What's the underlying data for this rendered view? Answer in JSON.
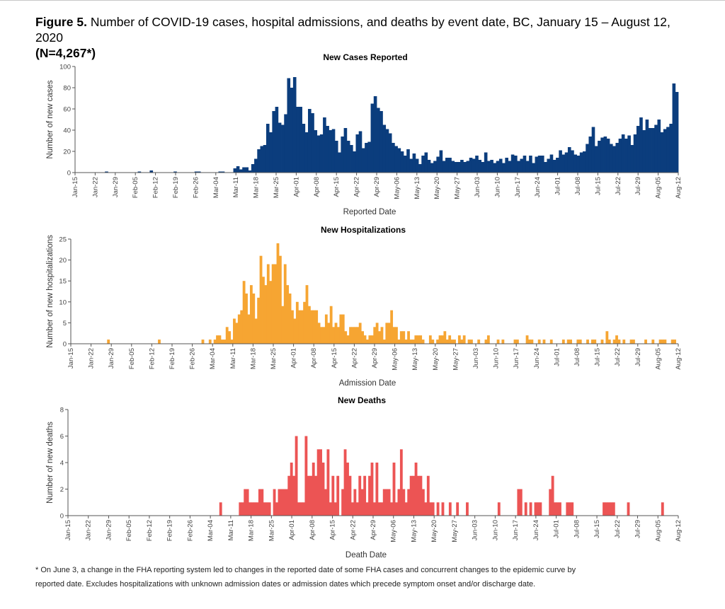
{
  "figure": {
    "label": "Figure 5.",
    "title": "Number of COVID-19 cases, hospital admissions, and deaths by event date, BC, January 15 – August 12, 2020",
    "n": "(N=4,267*)"
  },
  "footnote": {
    "line1": "* On June 3, a change in the FHA reporting system led to changes in the reported date of some FHA cases and concurrent changes to the epidemic curve by",
    "line2": "reported date. Excludes hospitalizations with unknown admission dates or admission dates which precede symptom onset and/or discharge date."
  },
  "chart_data": [
    {
      "id": "cases",
      "type": "bar",
      "title": "New Cases Reported",
      "xlabel": "Reported Date",
      "ylabel": "Number of new cases",
      "ylim": [
        0,
        100
      ],
      "yticks": [
        0,
        20,
        40,
        60,
        80,
        100
      ],
      "color": "#0b3d7d",
      "x_start": "Jan-15",
      "x_end": "Aug-12",
      "x_ticks": [
        "Jan-15",
        "Jan-22",
        "Jan-29",
        "Feb-05",
        "Feb-12",
        "Feb-19",
        "Feb-26",
        "Mar-04",
        "Mar-11",
        "Mar-18",
        "Mar-25",
        "Apr-01",
        "Apr-08",
        "Apr-15",
        "Apr-22",
        "Apr-29",
        "May-06",
        "May-13",
        "May-20",
        "May-27",
        "Jun-03",
        "Jun-10",
        "Jun-17",
        "Jun-24",
        "Jul-01",
        "Jul-08",
        "Jul-15",
        "Jul-22",
        "Jul-29",
        "Aug-05",
        "Aug-12"
      ],
      "values": [
        0,
        0,
        0,
        0,
        0,
        0,
        0,
        0,
        0,
        0,
        1,
        0,
        0,
        0,
        0,
        0,
        0,
        0,
        0,
        0,
        0,
        1,
        0,
        0,
        0,
        2,
        0,
        0,
        0,
        0,
        0,
        0,
        0,
        1,
        0,
        0,
        0,
        0,
        0,
        0,
        1,
        1,
        0,
        0,
        0,
        0,
        0,
        0,
        1,
        1,
        0,
        0,
        0,
        4,
        6,
        3,
        5,
        5,
        2,
        8,
        13,
        22,
        25,
        26,
        46,
        38,
        58,
        62,
        47,
        45,
        55,
        89,
        80,
        90,
        62,
        62,
        46,
        38,
        60,
        56,
        40,
        35,
        36,
        52,
        44,
        40,
        41,
        30,
        19,
        34,
        42,
        30,
        26,
        20,
        36,
        39,
        23,
        28,
        29,
        65,
        72,
        61,
        58,
        45,
        41,
        37,
        28,
        25,
        23,
        20,
        16,
        22,
        13,
        18,
        13,
        8,
        16,
        19,
        12,
        9,
        11,
        15,
        21,
        11,
        14,
        14,
        11,
        10,
        10,
        12,
        10,
        11,
        14,
        13,
        16,
        12,
        10,
        19,
        11,
        12,
        9,
        11,
        13,
        9,
        14,
        11,
        17,
        16,
        11,
        13,
        16,
        11,
        16,
        9,
        15,
        16,
        16,
        10,
        13,
        17,
        12,
        14,
        21,
        17,
        19,
        24,
        21,
        17,
        16,
        19,
        20,
        27,
        34,
        43,
        25,
        30,
        33,
        34,
        32,
        27,
        25,
        28,
        32,
        36,
        32,
        35,
        26,
        36,
        44,
        52,
        40,
        50,
        42,
        42,
        45,
        50,
        38,
        41,
        43,
        46,
        84,
        76
      ]
    },
    {
      "id": "hosp",
      "type": "bar",
      "title": "New Hospitalizations",
      "xlabel": "Admission Date",
      "ylabel": "Number of new hospitalizations",
      "ylim": [
        0,
        25
      ],
      "yticks": [
        0,
        5,
        10,
        15,
        20,
        25
      ],
      "color": "#f6a532",
      "x_start": "Jan-15",
      "x_end": "Aug-12",
      "x_ticks": [
        "Jan-15",
        "Jan-22",
        "Jan-29",
        "Feb-05",
        "Feb-12",
        "Feb-19",
        "Feb-26",
        "Mar-04",
        "Mar-11",
        "Mar-18",
        "Mar-25",
        "Apr-01",
        "Apr-08",
        "Apr-15",
        "Apr-22",
        "Apr-29",
        "May-06",
        "May-13",
        "May-20",
        "May-27",
        "Jun-03",
        "Jun-10",
        "Jun-17",
        "Jun-24",
        "Jul-01",
        "Jul-08",
        "Jul-15",
        "Jul-22",
        "Jul-29",
        "Aug-05",
        "Aug-12"
      ],
      "values": [
        0,
        0,
        0,
        0,
        0,
        0,
        0,
        0,
        0,
        0,
        0,
        0,
        0,
        0,
        0,
        1,
        0,
        0,
        0,
        0,
        0,
        0,
        0,
        0,
        0,
        0,
        0,
        0,
        0,
        0,
        0,
        0,
        0,
        0,
        0,
        0,
        1,
        0,
        0,
        0,
        0,
        0,
        0,
        0,
        0,
        0,
        0,
        0,
        0,
        0,
        0,
        0,
        0,
        0,
        1,
        0,
        0,
        1,
        0,
        1,
        2,
        2,
        1,
        1,
        4,
        3,
        1,
        6,
        5,
        7,
        8,
        15,
        12,
        7,
        14,
        12,
        6,
        11,
        21,
        16,
        14,
        19,
        15,
        19,
        19,
        24,
        21,
        9,
        19,
        14,
        12,
        8,
        6,
        10,
        8,
        8,
        10,
        14,
        9,
        8,
        8,
        8,
        5,
        4,
        4,
        7,
        5,
        9,
        4,
        5,
        4,
        7,
        7,
        3,
        2,
        4,
        4,
        4,
        4,
        5,
        3,
        2,
        1,
        2,
        2,
        4,
        5,
        3,
        4,
        1,
        5,
        5,
        8,
        4,
        4,
        1,
        3,
        3,
        1,
        3,
        1,
        1,
        2,
        2,
        2,
        1,
        0,
        0,
        2,
        1,
        0,
        1,
        2,
        2,
        3,
        1,
        2,
        1,
        1,
        0,
        2,
        1,
        2,
        0,
        1,
        1,
        0,
        0,
        1,
        0,
        0,
        1,
        2,
        0,
        0,
        0,
        1,
        0,
        1,
        0,
        0,
        0,
        0,
        1,
        1,
        0,
        0,
        0,
        2,
        1,
        1,
        0,
        0,
        1,
        0,
        1,
        0,
        0,
        1,
        0,
        0,
        0,
        0,
        1,
        0,
        1,
        1,
        0,
        0,
        1,
        1,
        0,
        0,
        1,
        0,
        1,
        1,
        0,
        0,
        1,
        0,
        3,
        1,
        0,
        1,
        2,
        1,
        0,
        1,
        0,
        0,
        1,
        1,
        0,
        0,
        0,
        0,
        1,
        0,
        0,
        1,
        0,
        0,
        1,
        1,
        1,
        0,
        0,
        1,
        1,
        0
      ]
    },
    {
      "id": "deaths",
      "type": "bar",
      "title": "New Deaths",
      "xlabel": "Death Date",
      "ylabel": "Number of new deaths",
      "ylim": [
        0,
        8
      ],
      "yticks": [
        0,
        2,
        4,
        6,
        8
      ],
      "color": "#ec5454",
      "x_start": "Jan-15",
      "x_end": "Aug-12",
      "x_ticks": [
        "Jan-15",
        "Jan-22",
        "Jan-29",
        "Feb-05",
        "Feb-12",
        "Feb-19",
        "Feb-26",
        "Mar-04",
        "Mar-11",
        "Mar-18",
        "Mar-25",
        "Apr-01",
        "Apr-08",
        "Apr-15",
        "Apr-22",
        "Apr-29",
        "May-06",
        "May-13",
        "May-20",
        "May-27",
        "Jun-03",
        "Jun-10",
        "Jun-17",
        "Jun-24",
        "Jul-01",
        "Jul-08",
        "Jul-15",
        "Jul-22",
        "Jul-29",
        "Aug-05",
        "Aug-12"
      ],
      "values": [
        0,
        0,
        0,
        0,
        0,
        0,
        0,
        0,
        0,
        0,
        0,
        0,
        0,
        0,
        0,
        0,
        0,
        0,
        0,
        0,
        0,
        0,
        0,
        0,
        0,
        0,
        0,
        0,
        0,
        0,
        0,
        0,
        0,
        0,
        0,
        0,
        0,
        0,
        0,
        0,
        0,
        0,
        0,
        0,
        0,
        0,
        0,
        0,
        0,
        0,
        0,
        0,
        0,
        0,
        0,
        0,
        0,
        0,
        0,
        0,
        0,
        0,
        1,
        0,
        0,
        0,
        0,
        0,
        0,
        0,
        1,
        1,
        2,
        2,
        1,
        1,
        1,
        1,
        2,
        2,
        1,
        1,
        1,
        0,
        2,
        1,
        2,
        2,
        2,
        2,
        3,
        4,
        3,
        6,
        1,
        1,
        1,
        6,
        3,
        3,
        4,
        3,
        5,
        5,
        4,
        2,
        5,
        1,
        3,
        1,
        3,
        0,
        2,
        5,
        4,
        3,
        1,
        2,
        1,
        3,
        2,
        3,
        1,
        3,
        4,
        1,
        4,
        1,
        1,
        2,
        2,
        2,
        1,
        4,
        1,
        2,
        5,
        2,
        1,
        2,
        3,
        3,
        4,
        3,
        3,
        2,
        1,
        3,
        1,
        1,
        0,
        1,
        0,
        1,
        0,
        0,
        1,
        0,
        0,
        1,
        0,
        0,
        0,
        1,
        0,
        0,
        0,
        0,
        0,
        0,
        0,
        0,
        0,
        0,
        0,
        0,
        1,
        0,
        0,
        0,
        0,
        0,
        0,
        0,
        2,
        2,
        0,
        1,
        0,
        1,
        0,
        1,
        1,
        1,
        0,
        0,
        0,
        2,
        3,
        1,
        1,
        1,
        0,
        0,
        1,
        1,
        1,
        0,
        0,
        0,
        0,
        0,
        0,
        0,
        0,
        0,
        0,
        0,
        0,
        1,
        1,
        1,
        1,
        1,
        0,
        0,
        0,
        0,
        0,
        1,
        0,
        0,
        0,
        0,
        0,
        0,
        0,
        0,
        0,
        0,
        0,
        0,
        0,
        1,
        0,
        0,
        0,
        0,
        0,
        0
      ]
    }
  ]
}
